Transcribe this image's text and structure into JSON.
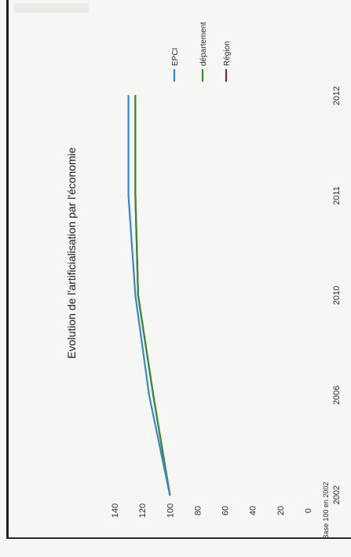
{
  "chart_data": {
    "type": "line",
    "orientation": "rotated-90-clockwise",
    "title": "Evolution de l'artificialisation par l'économie",
    "ylabel": "Base 100 en 2002",
    "xlabel": "",
    "x": [
      "2002",
      "2006",
      "2010",
      "2011",
      "2012"
    ],
    "ylim": [
      0,
      140
    ],
    "yticks": [
      "0",
      "20",
      "40",
      "60",
      "80",
      "100",
      "120",
      "140"
    ],
    "grid": false,
    "legend_position": "top-right",
    "series": [
      {
        "name": "EPCI",
        "color": "#3a86c8",
        "values": [
          100,
          115,
          125,
          130,
          130
        ]
      },
      {
        "name": "département",
        "color": "#3a8a3a",
        "values": [
          100,
          112,
          123,
          125,
          125
        ]
      },
      {
        "name": "Région",
        "color": "#7b2a3e",
        "values": [
          100,
          112,
          123,
          125,
          125
        ]
      }
    ]
  }
}
